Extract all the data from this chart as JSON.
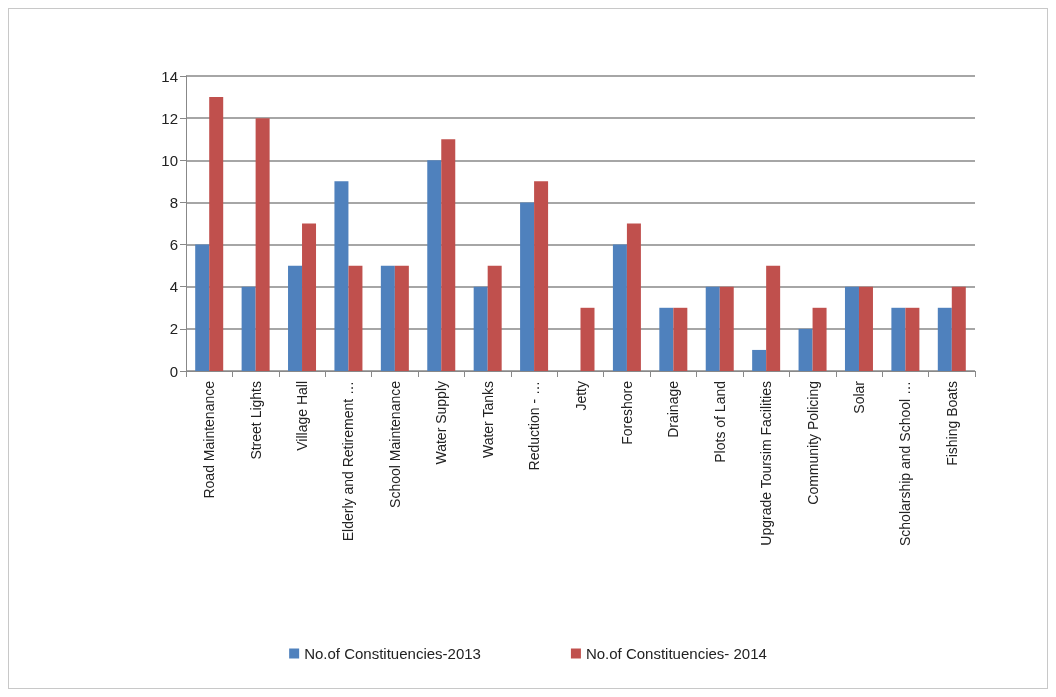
{
  "chart_data": {
    "type": "bar",
    "categories": [
      "Road Maintenance",
      "Street Lights",
      "Village Hall",
      "Elderly and Retirement …",
      "School Maintenance",
      "Water Supply",
      "Water Tanks",
      "Reduction - …",
      "Jetty",
      "Foreshore",
      "Drainage",
      "Plots of Land",
      "Upgrade Toursim Facilities",
      "Community Policing",
      "Solar",
      "Scholarship and School …",
      "Fishing Boats"
    ],
    "series": [
      {
        "name": "No.of Constituencies-2013",
        "color": "#4f81bd",
        "values": [
          6,
          4,
          5,
          9,
          5,
          10,
          4,
          8,
          null,
          6,
          3,
          4,
          1,
          2,
          4,
          3,
          3
        ]
      },
      {
        "name": "No.of Constituencies- 2014",
        "color": "#c0504d",
        "values": [
          13,
          12,
          7,
          5,
          5,
          11,
          5,
          9,
          3,
          7,
          3,
          4,
          5,
          3,
          4,
          3,
          4
        ]
      }
    ],
    "ylim": [
      0,
      14
    ],
    "yticks": [
      0,
      2,
      4,
      6,
      8,
      10,
      12,
      14
    ],
    "grid": "y",
    "legend": "bottom"
  }
}
